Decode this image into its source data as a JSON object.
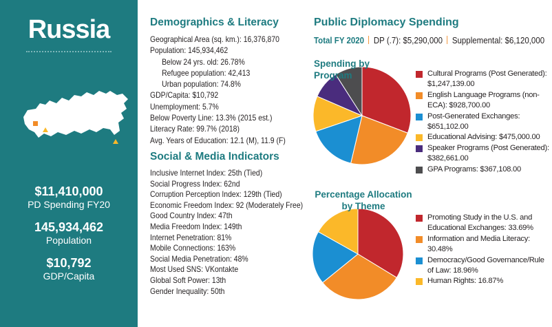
{
  "sidebar": {
    "country": "Russia",
    "stats": [
      {
        "value": "$11,410,000",
        "label": "PD Spending FY20"
      },
      {
        "value": "145,934,462",
        "label": "Population"
      },
      {
        "value": "$10,792",
        "label": "GDP/Capita"
      }
    ]
  },
  "demographics": {
    "title": "Demographics & Literacy",
    "top": [
      "Geographical Area (sq. km.): 16,376,870",
      "Population: 145,934,462"
    ],
    "population_detail": [
      "Below 24 yrs. old: 26.78%",
      "Refugee population: 42,413",
      "Urban population: 74.8%"
    ],
    "rest": [
      "GDP/Capita: $10,792",
      "Unemployment: 5.7%",
      "Below Poverty Line: 13.3% (2015 est.)",
      "Literacy Rate: 99.7% (2018)",
      "Avg. Years of Education: 12.1 (M), 11.9 (F)"
    ]
  },
  "social": {
    "title": "Social & Media Indicators",
    "lines": [
      "Inclusive Internet Index: 25th (Tied)",
      "Social Progress Index: 62nd",
      "Corruption Perception Index: 129th (Tied)",
      "Economic Freedom Index: 92 (Moderately Free)",
      "Good Country Index: 47th",
      "Media Freedom Index: 149th",
      "Internet Penetration: 81%",
      "Mobile Connections: 163%",
      "Social Media Penetration: 48%",
      "Most Used SNS: VKontakte",
      "Global Soft Power: 13th",
      "Gender Inequality: 50th"
    ]
  },
  "spending": {
    "title": "Public Diplomacy Spending",
    "total_label": "Total FY 2020",
    "dp": "DP (.7): $5,290,000",
    "supplemental": "Supplemental: $6,120,000"
  },
  "chart_data": [
    {
      "type": "pie",
      "title": "Spending by Program",
      "categories": [
        "Cultural Programs (Post Generated):",
        "English Language Programs (non-ECA):",
        "Post-Generated Exchanges:",
        "Educational Advising:",
        "Speaker Programs (Post Generated):",
        "GPA Programs:"
      ],
      "values": [
        1247139,
        928700,
        651102,
        475000,
        382661,
        367108
      ],
      "value_labels": [
        "$1,247,139.00",
        "$928,700.00",
        "$651,102.00",
        "$475,000.00",
        "$382,661.00",
        "$367,108.00"
      ],
      "colors": [
        "#c1272d",
        "#f28c28",
        "#1b8fd2",
        "#fbb829",
        "#4a2c7d",
        "#4d4d4f"
      ]
    },
    {
      "type": "pie",
      "title": "Percentage Allocation by Theme",
      "categories": [
        "Promoting Study in the U.S. and Educational Exchanges:",
        "Information and Media Literacy:",
        "Democracy/Good Governance/Rule of Law:",
        "Human Rights:"
      ],
      "values": [
        33.69,
        30.48,
        18.96,
        16.87
      ],
      "value_labels": [
        "33.69%",
        "30.48%",
        "18.96%",
        "16.87%"
      ],
      "colors": [
        "#c1272d",
        "#f28c28",
        "#1b8fd2",
        "#fbb829"
      ]
    }
  ]
}
